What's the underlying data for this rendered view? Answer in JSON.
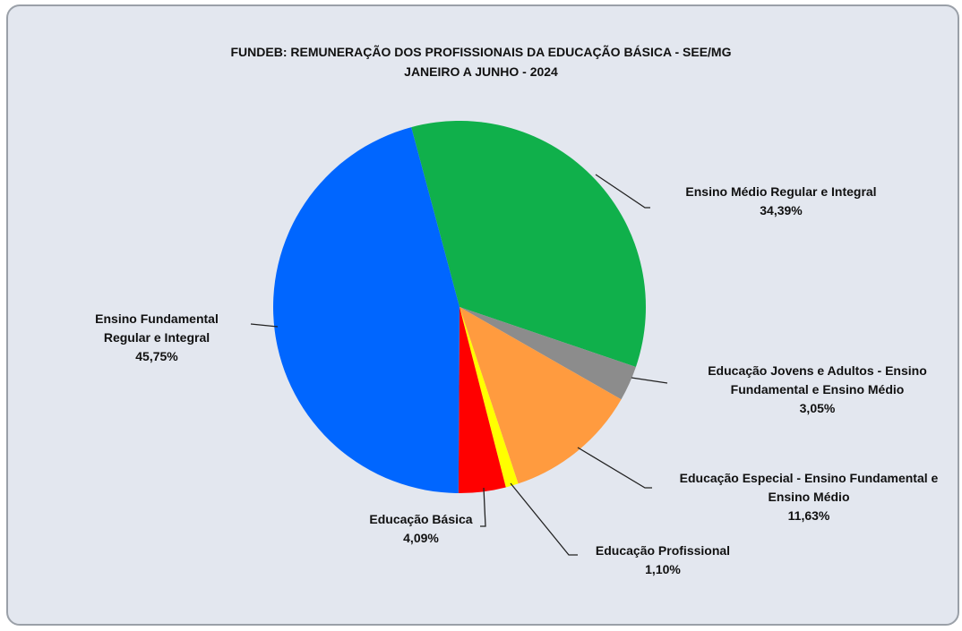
{
  "chart_data": {
    "type": "pie",
    "title": "FUNDEB: REMUNERAÇÃO DOS PROFISSIONAIS DA EDUCAÇÃO BÁSICA - SEE/MG",
    "subtitle": "JANEIRO A JUNHO - 2024",
    "categories": [
      "Ensino Médio Regular e Integral",
      "Educação Jovens e Adultos - Ensino Fundamental e Ensino Médio",
      "Educação Especial - Ensino Fundamental e Ensino Médio",
      "Educação Profissional",
      "Educação Básica",
      "Ensino Fundamental Regular e Integral"
    ],
    "values": [
      34.39,
      3.05,
      11.63,
      1.1,
      4.09,
      45.75
    ],
    "value_labels": [
      "34,39%",
      "3,05%",
      "11,63%",
      "1,10%",
      "4,09%",
      "45,75%"
    ],
    "colors": [
      "#10b04b",
      "#8c8c8c",
      "#ff9b3f",
      "#ffff00",
      "#ff0000",
      "#0066ff"
    ]
  }
}
